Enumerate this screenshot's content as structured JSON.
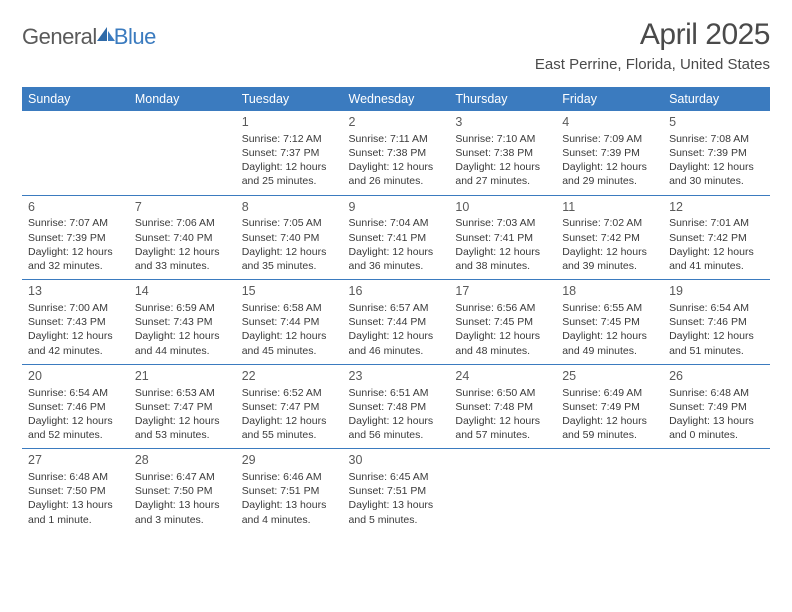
{
  "brand": {
    "part1": "General",
    "part2": "Blue"
  },
  "colors": {
    "header_bg": "#3b7bbf",
    "header_fg": "#ffffff",
    "rule": "#3b7bbf",
    "text": "#3a3a3a",
    "title": "#4a4a4a",
    "logo_gray": "#5a5a5a",
    "logo_blue": "#3b7bbf"
  },
  "title": "April 2025",
  "location": "East Perrine, Florida, United States",
  "day_headers": [
    "Sunday",
    "Monday",
    "Tuesday",
    "Wednesday",
    "Thursday",
    "Friday",
    "Saturday"
  ],
  "weeks": [
    [
      null,
      null,
      {
        "n": "1",
        "sr": "Sunrise: 7:12 AM",
        "ss": "Sunset: 7:37 PM",
        "d1": "Daylight: 12 hours",
        "d2": "and 25 minutes."
      },
      {
        "n": "2",
        "sr": "Sunrise: 7:11 AM",
        "ss": "Sunset: 7:38 PM",
        "d1": "Daylight: 12 hours",
        "d2": "and 26 minutes."
      },
      {
        "n": "3",
        "sr": "Sunrise: 7:10 AM",
        "ss": "Sunset: 7:38 PM",
        "d1": "Daylight: 12 hours",
        "d2": "and 27 minutes."
      },
      {
        "n": "4",
        "sr": "Sunrise: 7:09 AM",
        "ss": "Sunset: 7:39 PM",
        "d1": "Daylight: 12 hours",
        "d2": "and 29 minutes."
      },
      {
        "n": "5",
        "sr": "Sunrise: 7:08 AM",
        "ss": "Sunset: 7:39 PM",
        "d1": "Daylight: 12 hours",
        "d2": "and 30 minutes."
      }
    ],
    [
      {
        "n": "6",
        "sr": "Sunrise: 7:07 AM",
        "ss": "Sunset: 7:39 PM",
        "d1": "Daylight: 12 hours",
        "d2": "and 32 minutes."
      },
      {
        "n": "7",
        "sr": "Sunrise: 7:06 AM",
        "ss": "Sunset: 7:40 PM",
        "d1": "Daylight: 12 hours",
        "d2": "and 33 minutes."
      },
      {
        "n": "8",
        "sr": "Sunrise: 7:05 AM",
        "ss": "Sunset: 7:40 PM",
        "d1": "Daylight: 12 hours",
        "d2": "and 35 minutes."
      },
      {
        "n": "9",
        "sr": "Sunrise: 7:04 AM",
        "ss": "Sunset: 7:41 PM",
        "d1": "Daylight: 12 hours",
        "d2": "and 36 minutes."
      },
      {
        "n": "10",
        "sr": "Sunrise: 7:03 AM",
        "ss": "Sunset: 7:41 PM",
        "d1": "Daylight: 12 hours",
        "d2": "and 38 minutes."
      },
      {
        "n": "11",
        "sr": "Sunrise: 7:02 AM",
        "ss": "Sunset: 7:42 PM",
        "d1": "Daylight: 12 hours",
        "d2": "and 39 minutes."
      },
      {
        "n": "12",
        "sr": "Sunrise: 7:01 AM",
        "ss": "Sunset: 7:42 PM",
        "d1": "Daylight: 12 hours",
        "d2": "and 41 minutes."
      }
    ],
    [
      {
        "n": "13",
        "sr": "Sunrise: 7:00 AM",
        "ss": "Sunset: 7:43 PM",
        "d1": "Daylight: 12 hours",
        "d2": "and 42 minutes."
      },
      {
        "n": "14",
        "sr": "Sunrise: 6:59 AM",
        "ss": "Sunset: 7:43 PM",
        "d1": "Daylight: 12 hours",
        "d2": "and 44 minutes."
      },
      {
        "n": "15",
        "sr": "Sunrise: 6:58 AM",
        "ss": "Sunset: 7:44 PM",
        "d1": "Daylight: 12 hours",
        "d2": "and 45 minutes."
      },
      {
        "n": "16",
        "sr": "Sunrise: 6:57 AM",
        "ss": "Sunset: 7:44 PM",
        "d1": "Daylight: 12 hours",
        "d2": "and 46 minutes."
      },
      {
        "n": "17",
        "sr": "Sunrise: 6:56 AM",
        "ss": "Sunset: 7:45 PM",
        "d1": "Daylight: 12 hours",
        "d2": "and 48 minutes."
      },
      {
        "n": "18",
        "sr": "Sunrise: 6:55 AM",
        "ss": "Sunset: 7:45 PM",
        "d1": "Daylight: 12 hours",
        "d2": "and 49 minutes."
      },
      {
        "n": "19",
        "sr": "Sunrise: 6:54 AM",
        "ss": "Sunset: 7:46 PM",
        "d1": "Daylight: 12 hours",
        "d2": "and 51 minutes."
      }
    ],
    [
      {
        "n": "20",
        "sr": "Sunrise: 6:54 AM",
        "ss": "Sunset: 7:46 PM",
        "d1": "Daylight: 12 hours",
        "d2": "and 52 minutes."
      },
      {
        "n": "21",
        "sr": "Sunrise: 6:53 AM",
        "ss": "Sunset: 7:47 PM",
        "d1": "Daylight: 12 hours",
        "d2": "and 53 minutes."
      },
      {
        "n": "22",
        "sr": "Sunrise: 6:52 AM",
        "ss": "Sunset: 7:47 PM",
        "d1": "Daylight: 12 hours",
        "d2": "and 55 minutes."
      },
      {
        "n": "23",
        "sr": "Sunrise: 6:51 AM",
        "ss": "Sunset: 7:48 PM",
        "d1": "Daylight: 12 hours",
        "d2": "and 56 minutes."
      },
      {
        "n": "24",
        "sr": "Sunrise: 6:50 AM",
        "ss": "Sunset: 7:48 PM",
        "d1": "Daylight: 12 hours",
        "d2": "and 57 minutes."
      },
      {
        "n": "25",
        "sr": "Sunrise: 6:49 AM",
        "ss": "Sunset: 7:49 PM",
        "d1": "Daylight: 12 hours",
        "d2": "and 59 minutes."
      },
      {
        "n": "26",
        "sr": "Sunrise: 6:48 AM",
        "ss": "Sunset: 7:49 PM",
        "d1": "Daylight: 13 hours",
        "d2": "and 0 minutes."
      }
    ],
    [
      {
        "n": "27",
        "sr": "Sunrise: 6:48 AM",
        "ss": "Sunset: 7:50 PM",
        "d1": "Daylight: 13 hours",
        "d2": "and 1 minute."
      },
      {
        "n": "28",
        "sr": "Sunrise: 6:47 AM",
        "ss": "Sunset: 7:50 PM",
        "d1": "Daylight: 13 hours",
        "d2": "and 3 minutes."
      },
      {
        "n": "29",
        "sr": "Sunrise: 6:46 AM",
        "ss": "Sunset: 7:51 PM",
        "d1": "Daylight: 13 hours",
        "d2": "and 4 minutes."
      },
      {
        "n": "30",
        "sr": "Sunrise: 6:45 AM",
        "ss": "Sunset: 7:51 PM",
        "d1": "Daylight: 13 hours",
        "d2": "and 5 minutes."
      },
      null,
      null,
      null
    ]
  ]
}
